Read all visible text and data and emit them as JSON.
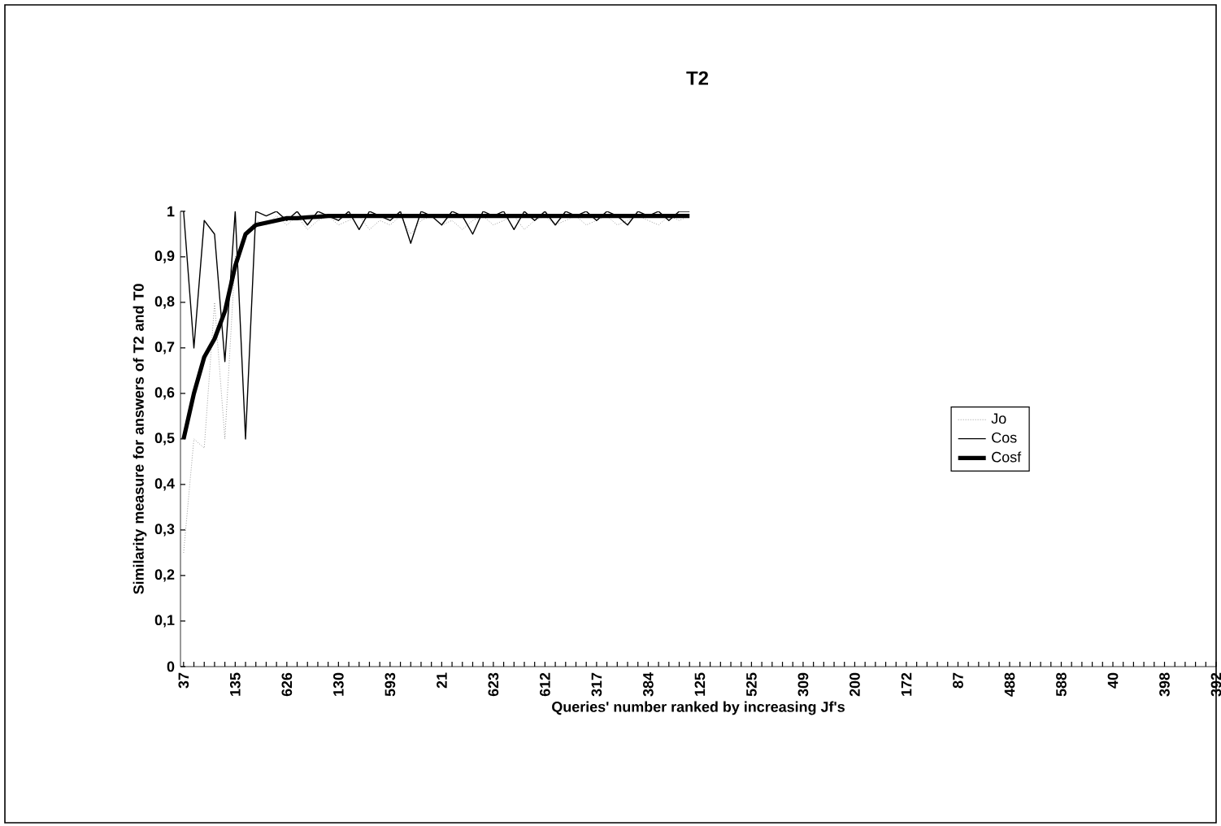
{
  "chart_data": {
    "type": "line",
    "title": "T2",
    "xlabel": "Queries' number ranked by increasing Jf's",
    "ylabel": "Similarity measure for answers of T2 and T0",
    "categories": [
      "37",
      null,
      null,
      null,
      null,
      "135",
      null,
      null,
      null,
      null,
      "626",
      null,
      null,
      null,
      null,
      "130",
      null,
      null,
      null,
      null,
      "593",
      null,
      null,
      null,
      null,
      "21",
      null,
      null,
      null,
      null,
      "623",
      null,
      null,
      null,
      null,
      "612",
      null,
      null,
      null,
      null,
      "317",
      null,
      null,
      null,
      null,
      "384",
      null,
      null,
      null,
      null,
      "125",
      null,
      null,
      null,
      null,
      "525",
      null,
      null,
      null,
      null,
      "309",
      null,
      null,
      null,
      null,
      "200",
      null,
      null,
      null,
      null,
      "172",
      null,
      null,
      null,
      null,
      "87",
      null,
      null,
      null,
      null,
      "488",
      null,
      null,
      null,
      null,
      "588",
      null,
      null,
      null,
      null,
      "40",
      null,
      null,
      null,
      null,
      "398",
      null,
      null,
      null,
      null,
      "392"
    ],
    "series": [
      {
        "name": "Jo",
        "color": "#9a9a9a",
        "line_style": "dotted",
        "values": [
          0.25,
          0.5,
          0.48,
          0.8,
          0.5,
          0.9,
          0.95,
          0.98,
          0.97,
          0.99,
          0.97,
          0.99,
          0.96,
          0.98,
          0.99,
          0.97,
          0.98,
          0.99,
          0.96,
          0.98,
          0.97,
          0.99,
          0.95,
          0.98,
          0.99,
          0.97,
          0.98,
          0.96,
          0.98,
          0.99,
          0.97,
          0.98,
          0.99,
          0.96,
          0.98,
          0.99,
          0.97,
          0.98,
          0.99,
          0.97,
          0.98,
          0.99,
          0.97,
          0.98,
          0.99,
          0.98,
          0.97,
          0.99,
          0.98,
          0.99,
          null,
          null,
          null,
          null,
          null,
          null,
          null,
          null,
          null,
          null,
          null,
          null,
          null,
          null,
          null,
          null,
          null,
          null,
          null,
          null,
          null,
          null,
          null,
          null,
          null,
          null,
          null,
          null,
          null,
          null,
          null,
          null,
          null,
          null,
          null,
          null,
          null,
          null,
          null,
          null,
          null,
          null,
          null,
          null,
          null,
          null,
          null,
          null,
          null,
          null,
          null
        ]
      },
      {
        "name": "Cos",
        "color": "#000000",
        "line_style": "solid",
        "values": [
          1,
          0.7,
          0.98,
          0.95,
          0.67,
          1,
          0.5,
          1,
          0.99,
          1,
          0.98,
          1,
          0.97,
          1,
          0.99,
          0.98,
          1,
          0.96,
          1,
          0.99,
          0.98,
          1,
          0.93,
          1,
          0.99,
          0.97,
          1,
          0.99,
          0.95,
          1,
          0.99,
          1,
          0.96,
          1,
          0.98,
          1,
          0.97,
          1,
          0.99,
          1,
          0.98,
          1,
          0.99,
          0.97,
          1,
          0.99,
          1,
          0.98,
          1,
          1,
          null,
          null,
          null,
          null,
          null,
          null,
          null,
          null,
          null,
          null,
          null,
          null,
          null,
          null,
          null,
          null,
          null,
          null,
          null,
          null,
          null,
          null,
          null,
          null,
          null,
          null,
          null,
          null,
          null,
          null,
          null,
          null,
          null,
          null,
          null,
          null,
          null,
          null,
          null,
          null,
          null,
          null,
          null,
          null,
          null,
          null,
          null,
          null,
          null,
          null,
          null
        ]
      },
      {
        "name": "Cosf",
        "color": "#000000",
        "line_style": "solid",
        "values": [
          0.5,
          0.6,
          0.68,
          0.72,
          0.78,
          0.88,
          0.95,
          0.97,
          0.975,
          0.98,
          0.985,
          0.985,
          0.987,
          0.988,
          0.99,
          0.99,
          0.99,
          0.99,
          0.99,
          0.99,
          0.99,
          0.99,
          0.99,
          0.99,
          0.99,
          0.99,
          0.99,
          0.99,
          0.99,
          0.99,
          0.99,
          0.99,
          0.99,
          0.99,
          0.99,
          0.99,
          0.99,
          0.99,
          0.99,
          0.99,
          0.99,
          0.99,
          0.99,
          0.99,
          0.99,
          0.99,
          0.99,
          0.99,
          0.99,
          0.99,
          null,
          null,
          null,
          null,
          null,
          null,
          null,
          null,
          null,
          null,
          null,
          null,
          null,
          null,
          null,
          null,
          null,
          null,
          null,
          null,
          null,
          null,
          null,
          null,
          null,
          null,
          null,
          null,
          null,
          null,
          null,
          null,
          null,
          null,
          null,
          null,
          null,
          null,
          null,
          null,
          null,
          null,
          null,
          null,
          null,
          null,
          null,
          null,
          null,
          null,
          null
        ]
      }
    ],
    "ylim": [
      0,
      1
    ],
    "yticks": [
      0,
      {
        "value": 0.1,
        "label": "0,1"
      },
      {
        "value": 0.2,
        "label": "0,2"
      },
      {
        "value": 0.3,
        "label": "0,3"
      },
      {
        "value": 0.4,
        "label": "0,4"
      },
      {
        "value": 0.5,
        "label": "0,5"
      },
      {
        "value": 0.6,
        "label": "0,6"
      },
      {
        "value": 0.7,
        "label": "0,7"
      },
      {
        "value": 0.8,
        "label": "0,8"
      },
      {
        "value": 0.9,
        "label": "0,9"
      },
      1
    ],
    "legend": "right",
    "grid": false
  }
}
